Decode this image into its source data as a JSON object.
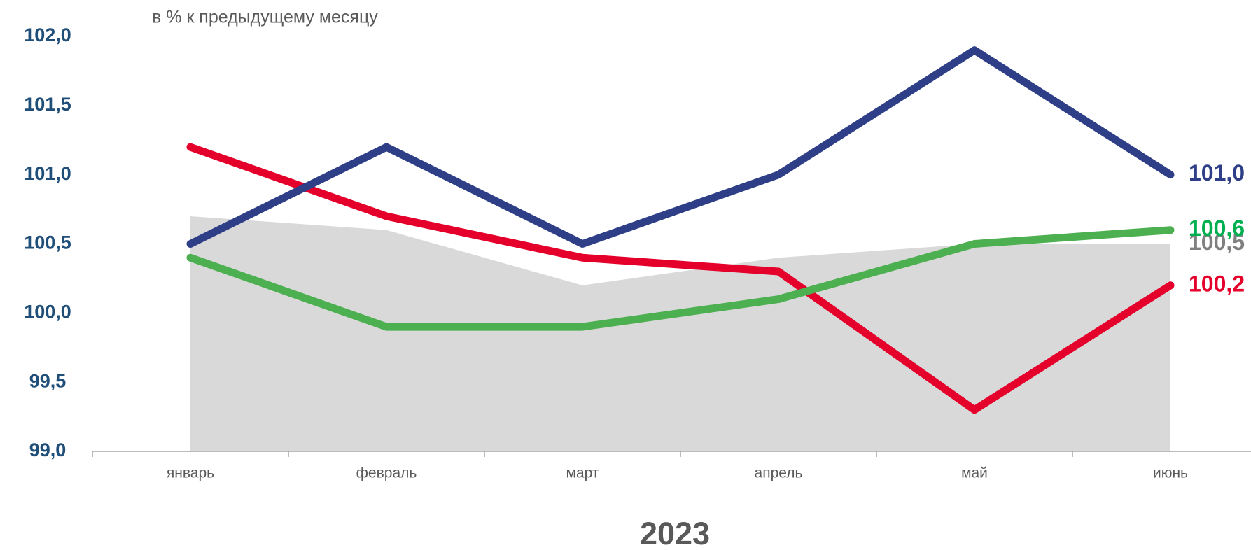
{
  "chart_data": {
    "type": "line",
    "subtitle": "в % к предыдущему месяцу",
    "xlabel": "2023",
    "categories": [
      "январь",
      "февраль",
      "март",
      "апрель",
      "май",
      "июнь"
    ],
    "series": [
      {
        "type": "area",
        "color": "#d9d9d9",
        "label_color": "#808080",
        "values": [
          100.7,
          100.6,
          100.2,
          100.4,
          100.5,
          100.5
        ],
        "value_labels": [
          null,
          null,
          null,
          null,
          null,
          "100,5"
        ]
      },
      {
        "type": "line",
        "color": "#e4002b",
        "values": [
          101.2,
          100.7,
          100.4,
          100.3,
          99.3,
          100.2
        ],
        "value_labels": [
          null,
          null,
          null,
          null,
          null,
          "100,2"
        ]
      },
      {
        "type": "line",
        "color": "#4caf50",
        "label_color": "#00b050",
        "values": [
          100.4,
          99.9,
          99.9,
          100.1,
          100.5,
          100.6
        ],
        "value_labels": [
          null,
          null,
          null,
          null,
          null,
          "100,6"
        ]
      },
      {
        "type": "line",
        "color": "#2e3f87",
        "values": [
          100.5,
          101.2,
          100.5,
          101.0,
          101.9,
          101.0
        ],
        "value_labels": [
          null,
          null,
          null,
          null,
          null,
          "101,0"
        ]
      }
    ],
    "ylim": [
      99,
      102
    ],
    "yticks": [
      {
        "value": 99,
        "label": "99,0"
      },
      {
        "value": 99.5,
        "label": "99,5"
      },
      {
        "value": 100,
        "label": "100,0"
      },
      {
        "value": 100.5,
        "label": "100,5"
      },
      {
        "value": 101,
        "label": "101,0"
      },
      {
        "value": 101.5,
        "label": "101,5"
      },
      {
        "value": 102,
        "label": "102,0"
      }
    ],
    "grid": false
  }
}
